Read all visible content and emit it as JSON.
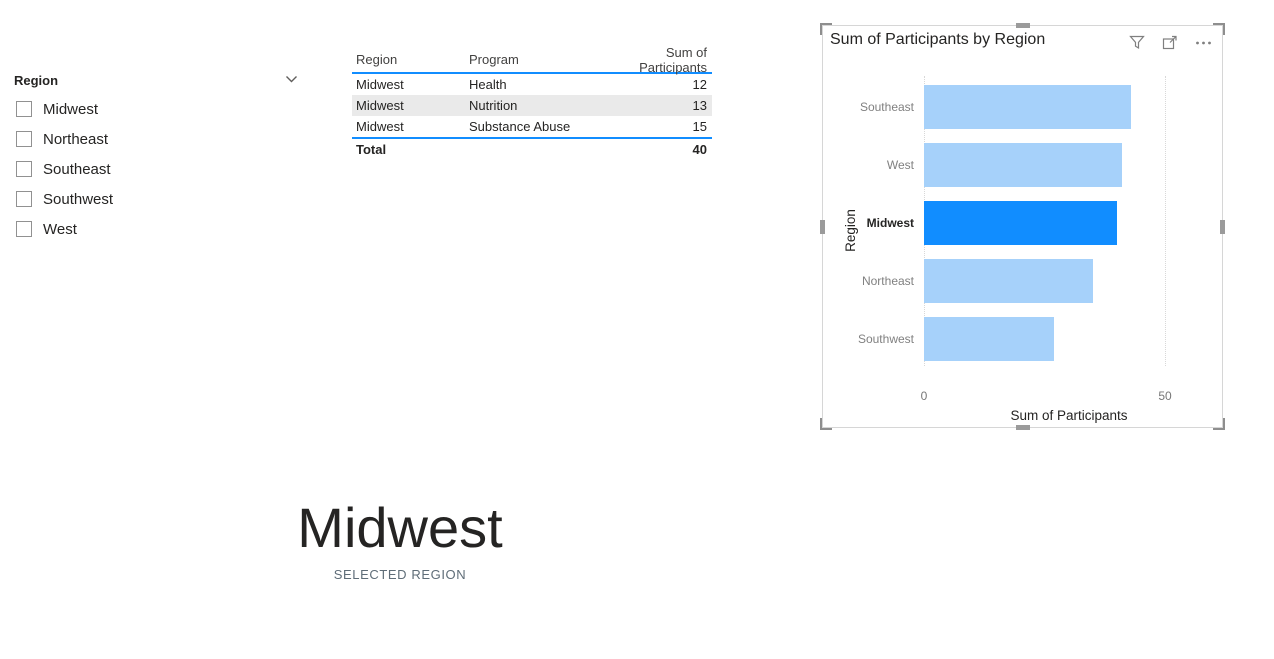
{
  "slicer": {
    "title": "Region",
    "items": [
      {
        "label": "Midwest",
        "checked": false
      },
      {
        "label": "Northeast",
        "checked": false
      },
      {
        "label": "Southeast",
        "checked": false
      },
      {
        "label": "Southwest",
        "checked": false
      },
      {
        "label": "West",
        "checked": false
      }
    ]
  },
  "table": {
    "columns": [
      "Region",
      "Program",
      "Sum of Participants"
    ],
    "rows": [
      [
        "Midwest",
        "Health",
        "12"
      ],
      [
        "Midwest",
        "Nutrition",
        "13"
      ],
      [
        "Midwest",
        "Substance Abuse",
        "15"
      ]
    ],
    "total_label": "Total",
    "total_value": "40",
    "accent_color": "#118DFF",
    "alt_row_color": "#EAEAEA"
  },
  "chart_data": {
    "type": "bar",
    "orientation": "horizontal",
    "title": "Sum of Participants by Region",
    "categories": [
      "Southeast",
      "West",
      "Midwest",
      "Northeast",
      "Southwest"
    ],
    "values": [
      43,
      41,
      40,
      35,
      27
    ],
    "selected_index": 2,
    "selected_category": "Midwest",
    "xlabel": "Sum of Participants",
    "ylabel": "Region",
    "xlim": [
      0,
      50
    ],
    "x_ticks": [
      0,
      50
    ],
    "grid": "dotted-vertical",
    "legend": "none",
    "bar_color_selected": "#118DFF",
    "bar_color_unselected": "#A6D1FA",
    "toolbar_icons": [
      "filter-icon",
      "focus-mode-icon",
      "more-options-icon"
    ]
  },
  "card": {
    "value": "Midwest",
    "label": "SELECTED REGION"
  }
}
